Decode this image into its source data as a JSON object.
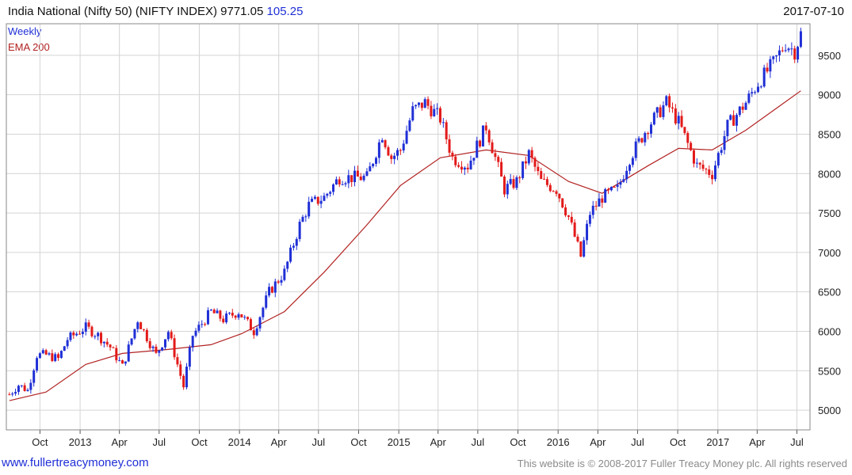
{
  "header": {
    "title": "India National (Nifty 50) (NIFTY INDEX) 9771.05",
    "change": "105.25",
    "date": "2017-07-10"
  },
  "footer": {
    "left": "www.fullertreacymoney.com",
    "right": "This website is © 2008-2017 Fuller Treacy Money plc. All rights reserved"
  },
  "colors": {
    "up": "#1f2fd6",
    "down": "#e31a1a",
    "ema": "#b22222",
    "grid": "#d4d4d4"
  },
  "chart_data": {
    "type": "candlestick",
    "title": "India National (Nifty 50) (NIFTY INDEX) 9771.05",
    "legend": [
      "Weekly",
      "EMA 200"
    ],
    "legend_position": "top-left",
    "ylim": [
      4750,
      9900
    ],
    "y_ticks": [
      5000,
      5500,
      6000,
      6500,
      7000,
      7500,
      8000,
      8500,
      9000,
      9500
    ],
    "grid": true,
    "x_ticks": [
      {
        "label": "Oct",
        "date": "2012-10-01"
      },
      {
        "label": "2013",
        "date": "2013-01-01"
      },
      {
        "label": "Apr",
        "date": "2013-04-01"
      },
      {
        "label": "Jul",
        "date": "2013-07-01"
      },
      {
        "label": "Oct",
        "date": "2013-10-01"
      },
      {
        "label": "2014",
        "date": "2014-01-01"
      },
      {
        "label": "Apr",
        "date": "2014-04-01"
      },
      {
        "label": "Jul",
        "date": "2014-07-01"
      },
      {
        "label": "Oct",
        "date": "2014-10-01"
      },
      {
        "label": "2015",
        "date": "2015-01-01"
      },
      {
        "label": "Apr",
        "date": "2015-04-01"
      },
      {
        "label": "Jul",
        "date": "2015-07-01"
      },
      {
        "label": "Oct",
        "date": "2015-10-01"
      },
      {
        "label": "2016",
        "date": "2016-01-01"
      },
      {
        "label": "Apr",
        "date": "2016-04-01"
      },
      {
        "label": "Jul",
        "date": "2016-07-01"
      },
      {
        "label": "Oct",
        "date": "2016-10-01"
      },
      {
        "label": "2017",
        "date": "2017-01-01"
      },
      {
        "label": "Apr",
        "date": "2017-04-01"
      },
      {
        "label": "Jul",
        "date": "2017-07-01"
      }
    ],
    "x_range": [
      "2012-07-16",
      "2017-07-31"
    ],
    "weekly_close_path": [
      {
        "date": "2012-07-23",
        "close": 5200
      },
      {
        "date": "2012-08-13",
        "close": 5320
      },
      {
        "date": "2012-09-03",
        "close": 5250
      },
      {
        "date": "2012-09-24",
        "close": 5700
      },
      {
        "date": "2012-10-15",
        "close": 5700
      },
      {
        "date": "2012-11-12",
        "close": 5650
      },
      {
        "date": "2012-12-03",
        "close": 5900
      },
      {
        "date": "2013-01-14",
        "close": 6050
      },
      {
        "date": "2013-02-11",
        "close": 5950
      },
      {
        "date": "2013-03-11",
        "close": 5800
      },
      {
        "date": "2013-04-08",
        "close": 5550
      },
      {
        "date": "2013-05-13",
        "close": 6150
      },
      {
        "date": "2013-06-24",
        "close": 5700
      },
      {
        "date": "2013-07-22",
        "close": 6000
      },
      {
        "date": "2013-08-26",
        "close": 5300
      },
      {
        "date": "2013-09-16",
        "close": 5950
      },
      {
        "date": "2013-10-28",
        "close": 6250
      },
      {
        "date": "2013-11-25",
        "close": 6150
      },
      {
        "date": "2013-12-30",
        "close": 6250
      },
      {
        "date": "2014-02-03",
        "close": 6000
      },
      {
        "date": "2014-03-10",
        "close": 6500
      },
      {
        "date": "2014-04-14",
        "close": 6750
      },
      {
        "date": "2014-05-19",
        "close": 7350
      },
      {
        "date": "2014-06-09",
        "close": 7600
      },
      {
        "date": "2014-07-14",
        "close": 7700
      },
      {
        "date": "2014-08-18",
        "close": 7950
      },
      {
        "date": "2014-09-22",
        "close": 7950
      },
      {
        "date": "2014-10-20",
        "close": 7950
      },
      {
        "date": "2014-11-24",
        "close": 8500
      },
      {
        "date": "2014-12-15",
        "close": 8200
      },
      {
        "date": "2015-01-05",
        "close": 8300
      },
      {
        "date": "2015-02-02",
        "close": 8800
      },
      {
        "date": "2015-03-02",
        "close": 8900
      },
      {
        "date": "2015-04-06",
        "close": 8700
      },
      {
        "date": "2015-05-04",
        "close": 8200
      },
      {
        "date": "2015-06-08",
        "close": 8100
      },
      {
        "date": "2015-07-20",
        "close": 8600
      },
      {
        "date": "2015-08-31",
        "close": 7800
      },
      {
        "date": "2015-09-28",
        "close": 7900
      },
      {
        "date": "2015-10-26",
        "close": 8250
      },
      {
        "date": "2015-11-23",
        "close": 7900
      },
      {
        "date": "2015-12-28",
        "close": 7800
      },
      {
        "date": "2016-01-25",
        "close": 7450
      },
      {
        "date": "2016-02-22",
        "close": 6950
      },
      {
        "date": "2016-03-14",
        "close": 7500
      },
      {
        "date": "2016-04-11",
        "close": 7700
      },
      {
        "date": "2016-05-16",
        "close": 7800
      },
      {
        "date": "2016-06-13",
        "close": 8200
      },
      {
        "date": "2016-07-25",
        "close": 8600
      },
      {
        "date": "2016-09-05",
        "close": 8900
      },
      {
        "date": "2016-10-03",
        "close": 8650
      },
      {
        "date": "2016-11-14",
        "close": 8100
      },
      {
        "date": "2016-12-19",
        "close": 8000
      },
      {
        "date": "2017-01-23",
        "close": 8600
      },
      {
        "date": "2017-03-06",
        "close": 8900
      },
      {
        "date": "2017-04-03",
        "close": 9150
      },
      {
        "date": "2017-05-08",
        "close": 9400
      },
      {
        "date": "2017-06-05",
        "close": 9650
      },
      {
        "date": "2017-06-26",
        "close": 9550
      },
      {
        "date": "2017-07-10",
        "close": 9771
      }
    ],
    "ema_200": [
      {
        "date": "2012-07-23",
        "value": 5120
      },
      {
        "date": "2012-10-15",
        "value": 5230
      },
      {
        "date": "2013-01-14",
        "value": 5580
      },
      {
        "date": "2013-04-08",
        "value": 5720
      },
      {
        "date": "2013-07-22",
        "value": 5770
      },
      {
        "date": "2013-10-28",
        "value": 5830
      },
      {
        "date": "2014-01-06",
        "value": 5970
      },
      {
        "date": "2014-04-14",
        "value": 6250
      },
      {
        "date": "2014-07-14",
        "value": 6750
      },
      {
        "date": "2014-10-20",
        "value": 7350
      },
      {
        "date": "2015-01-05",
        "value": 7850
      },
      {
        "date": "2015-04-06",
        "value": 8200
      },
      {
        "date": "2015-07-20",
        "value": 8300
      },
      {
        "date": "2015-10-26",
        "value": 8230
      },
      {
        "date": "2016-01-25",
        "value": 7900
      },
      {
        "date": "2016-04-11",
        "value": 7750
      },
      {
        "date": "2016-07-25",
        "value": 8100
      },
      {
        "date": "2016-10-03",
        "value": 8320
      },
      {
        "date": "2016-12-19",
        "value": 8300
      },
      {
        "date": "2017-03-06",
        "value": 8550
      },
      {
        "date": "2017-05-08",
        "value": 8800
      },
      {
        "date": "2017-07-10",
        "value": 9050
      }
    ],
    "annotations": []
  }
}
